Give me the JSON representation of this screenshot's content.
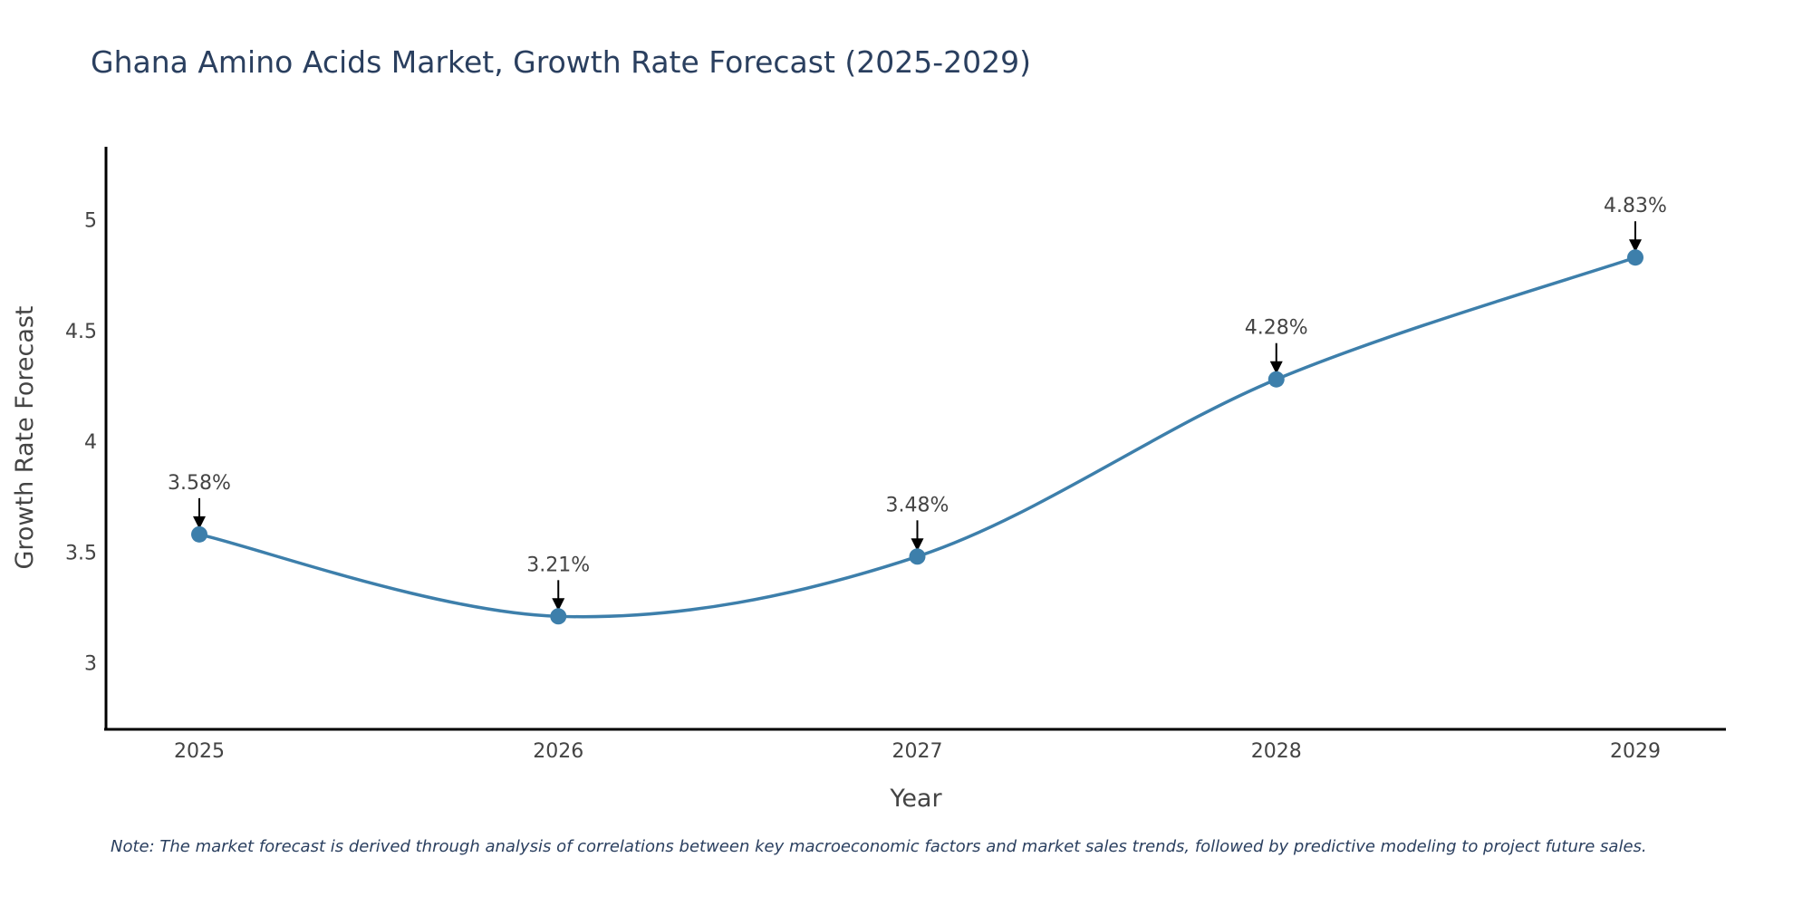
{
  "chart_data": {
    "type": "line",
    "title": "Ghana Amino Acids Market, Growth Rate Forecast (2025-2029)",
    "xlabel": "Year",
    "ylabel": "Growth Rate Forecast",
    "categories": [
      "2025",
      "2026",
      "2027",
      "2028",
      "2029"
    ],
    "values": [
      3.58,
      3.21,
      3.48,
      4.28,
      4.83
    ],
    "data_labels": [
      "3.58%",
      "3.21%",
      "3.48%",
      "4.28%",
      "4.83%"
    ],
    "yticks": [
      "3",
      "3.5",
      "4",
      "4.5",
      "5"
    ],
    "ytick_values": [
      3,
      3.5,
      4,
      4.5,
      5
    ],
    "ylim": [
      2.7,
      5.33
    ],
    "grid": false,
    "line_color": "#3d7fab",
    "marker_color": "#3d7fab",
    "note": "Note: The market forecast is derived through analysis of correlations between key macroeconomic factors and market sales trends, followed by predictive modeling to project future sales."
  }
}
